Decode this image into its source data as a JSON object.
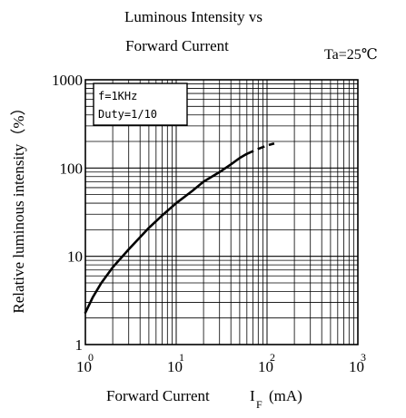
{
  "chart_data": {
    "type": "line",
    "title": "Luminous Intensity vs",
    "subtitle": "Forward Current",
    "condition": "Ta=25℃",
    "xlabel_main": "Forward Current",
    "xlabel_symbol": "I",
    "xlabel_subscript": "F",
    "xlabel_unit": "(mA)",
    "ylabel": "Relative luminous intensity（%）",
    "xscale": "log",
    "yscale": "log",
    "xlim": [
      1,
      1000
    ],
    "ylim": [
      1,
      1000
    ],
    "grid": true,
    "x_tick_labels": [
      {
        "base": "10",
        "exp": "0"
      },
      {
        "base": "10",
        "exp": "1"
      },
      {
        "base": "10",
        "exp": "2"
      },
      {
        "base": "10",
        "exp": "3"
      }
    ],
    "y_tick_labels": [
      "1",
      "10",
      "100",
      "1000"
    ],
    "annotation_lines": [
      "f=1KHz",
      "Duty=1/10"
    ],
    "series": [
      {
        "style": "solid",
        "points": [
          [
            1,
            2.3
          ],
          [
            1.2,
            3.4
          ],
          [
            1.5,
            5.0
          ],
          [
            2,
            7.5
          ],
          [
            3,
            12
          ],
          [
            5,
            21
          ],
          [
            7,
            29
          ],
          [
            10,
            40
          ],
          [
            15,
            55
          ],
          [
            20,
            70
          ],
          [
            30,
            90
          ],
          [
            40,
            110
          ],
          [
            50,
            130
          ],
          [
            60,
            145
          ]
        ]
      },
      {
        "style": "dashed",
        "points": [
          [
            60,
            145
          ],
          [
            80,
            165
          ],
          [
            100,
            180
          ],
          [
            120,
            190
          ]
        ]
      }
    ]
  }
}
